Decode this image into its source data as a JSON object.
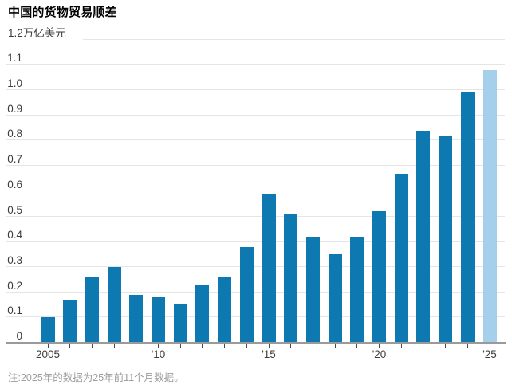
{
  "chart_data": {
    "type": "bar",
    "title": "中国的货物贸易顺差",
    "unit": "万亿美元",
    "note": "注:2025年的数据为25年前11个月数据。",
    "categories": [
      "2005",
      "2006",
      "2007",
      "2008",
      "2009",
      "2010",
      "2011",
      "2012",
      "2013",
      "2014",
      "2015",
      "2016",
      "2017",
      "2018",
      "2019",
      "2020",
      "2021",
      "2022",
      "2023",
      "2024",
      "2025"
    ],
    "values": [
      0.1,
      0.17,
      0.26,
      0.3,
      0.19,
      0.18,
      0.15,
      0.23,
      0.26,
      0.38,
      0.59,
      0.51,
      0.42,
      0.35,
      0.42,
      0.52,
      0.67,
      0.84,
      0.82,
      0.99,
      1.08
    ],
    "highlight_index": 20,
    "ylim": [
      0,
      1.2
    ],
    "grid": "horizontal",
    "legend": "none",
    "y_axis": {
      "ticks": [
        {
          "value": 0.0,
          "label": "0"
        },
        {
          "value": 0.1,
          "label": "0.1"
        },
        {
          "value": 0.2,
          "label": "0.2"
        },
        {
          "value": 0.3,
          "label": "0.3"
        },
        {
          "value": 0.4,
          "label": "0.4"
        },
        {
          "value": 0.5,
          "label": "0.5"
        },
        {
          "value": 0.6,
          "label": "0.6"
        },
        {
          "value": 0.7,
          "label": "0.7"
        },
        {
          "value": 0.8,
          "label": "0.8"
        },
        {
          "value": 0.9,
          "label": "0.9"
        },
        {
          "value": 1.0,
          "label": "1.0"
        },
        {
          "value": 1.1,
          "label": "1.1"
        },
        {
          "value": 1.2,
          "label": "1.2万亿美元",
          "unit_row": true
        }
      ]
    },
    "x_axis": {
      "tick_every_bar": true,
      "labels": [
        {
          "index": 0,
          "text": "2005"
        },
        {
          "index": 5,
          "text": "'10"
        },
        {
          "index": 10,
          "text": "'15"
        },
        {
          "index": 15,
          "text": "'20"
        },
        {
          "index": 20,
          "text": "'25"
        }
      ]
    },
    "colors": {
      "bar": "#0e78b1",
      "highlight": "#a6cfec",
      "gridline": "#e5e5e5",
      "baseline": "#9a9a9a"
    }
  }
}
